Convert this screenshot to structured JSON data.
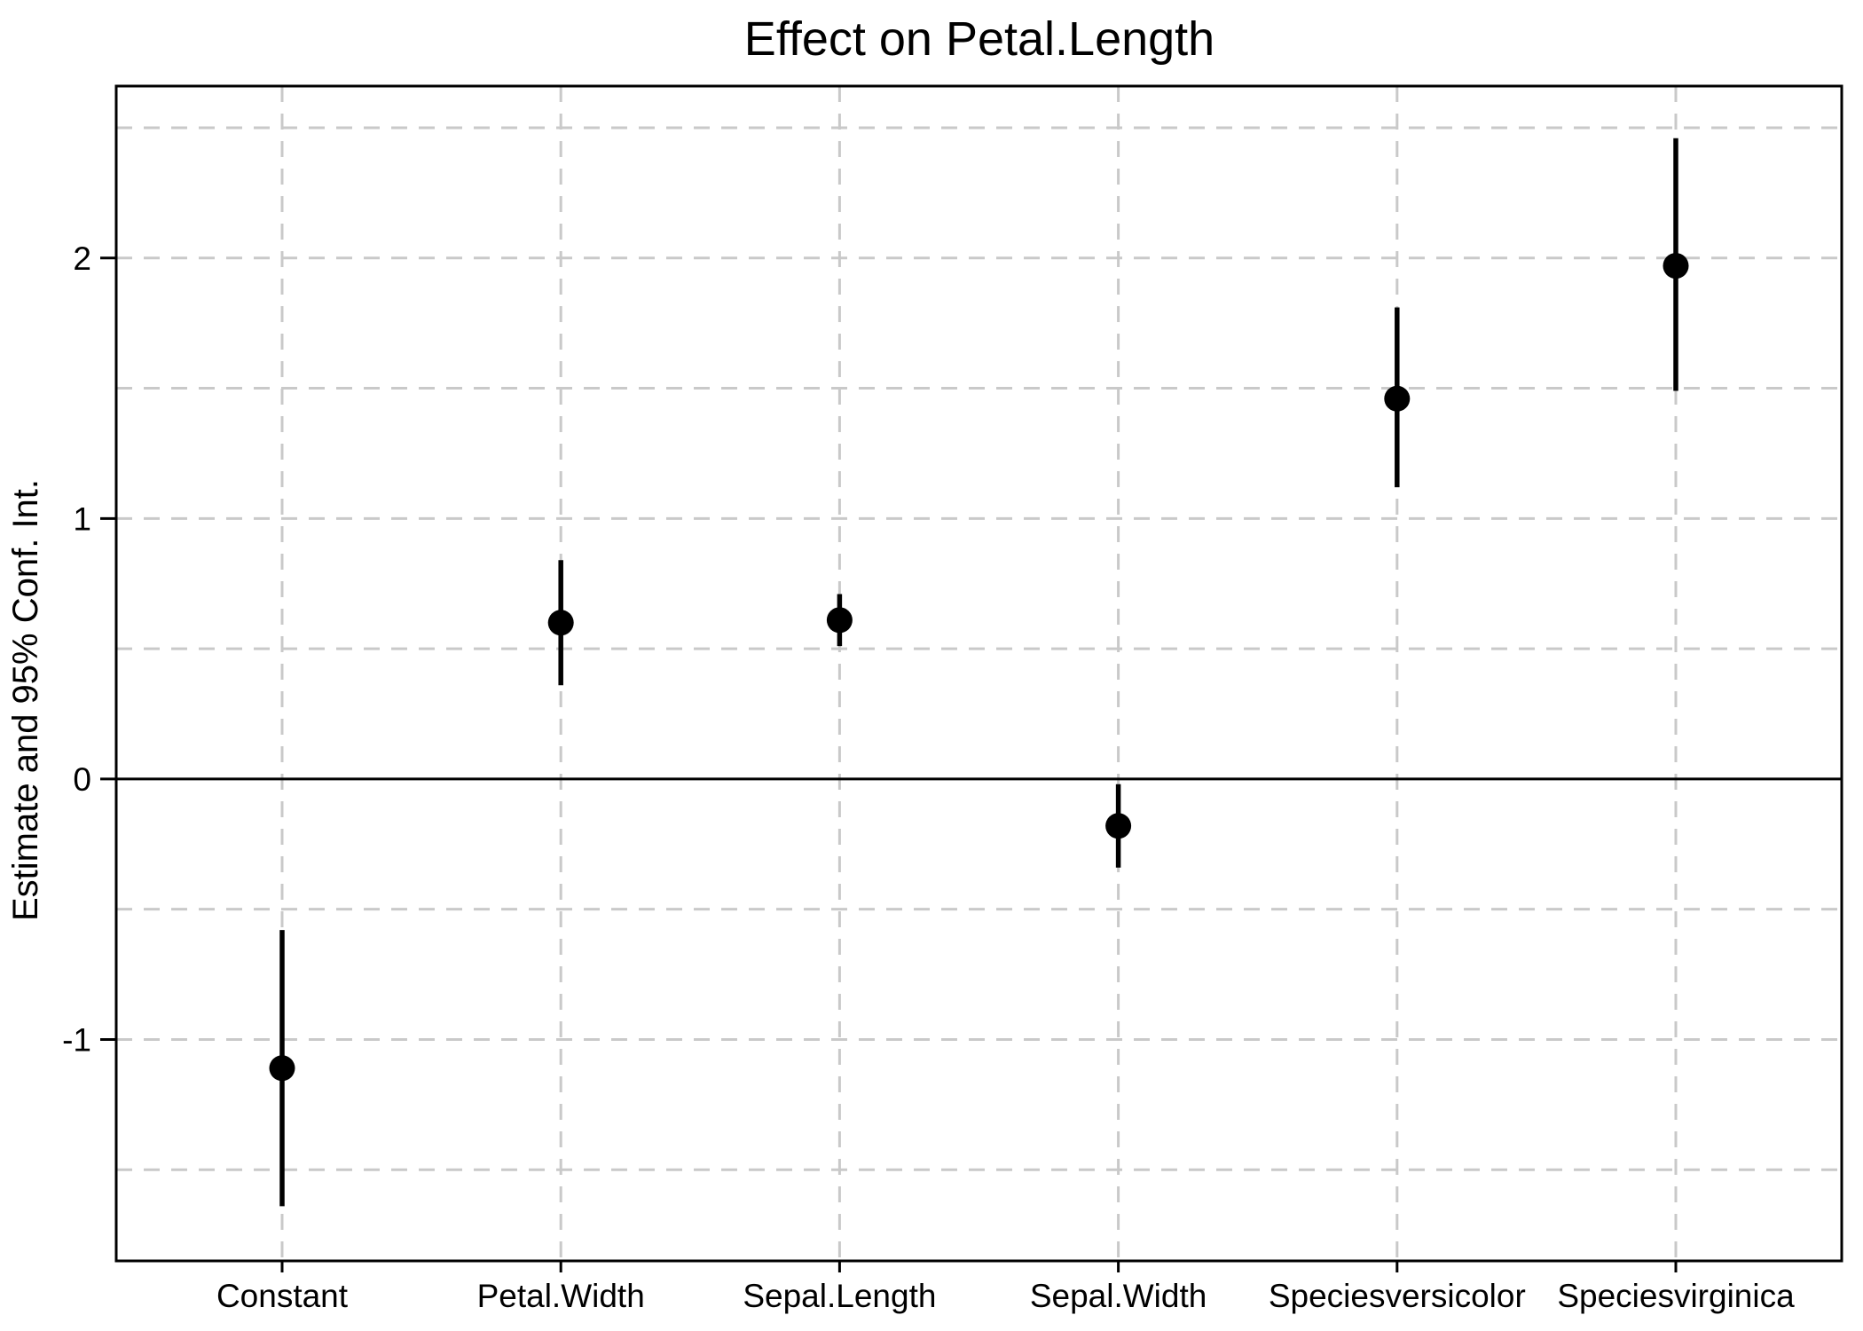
{
  "title": "Effect on Petal.Length",
  "chart_data": {
    "type": "scatter",
    "subtype": "coefficient-dot-and-whisker-plot",
    "title": "Effect on Petal.Length",
    "xlabel": "",
    "ylabel": "Estimate and 95% Conf. Int.",
    "categories": [
      "Constant",
      "Petal.Width",
      "Sepal.Length",
      "Sepal.Width",
      "Speciesversicolor",
      "Speciesvirginica"
    ],
    "series": [
      {
        "name": "estimate",
        "values": [
          -1.11,
          0.6,
          0.61,
          -0.18,
          1.46,
          1.97
        ]
      },
      {
        "name": "ci95_lower",
        "values": [
          -1.64,
          0.36,
          0.51,
          -0.34,
          1.12,
          1.49
        ]
      },
      {
        "name": "ci95_upper",
        "values": [
          -0.58,
          0.84,
          0.71,
          -0.02,
          1.81,
          2.46
        ]
      }
    ],
    "ylim": [
      -1.85,
      2.66
    ],
    "yticks": [
      2,
      1,
      0,
      -1
    ],
    "ytick_labels": [
      "2",
      "1",
      "0",
      "-1"
    ],
    "y_gridlines": [
      2.5,
      2,
      1.5,
      1,
      0.5,
      -0.5,
      -1,
      -1.5
    ],
    "zero_line": 0,
    "grid": "dashed gray horizontal every 0.5 and vertical at each category",
    "legend": false,
    "point_color": "#000000",
    "errorbar_color": "#000000",
    "gridline_color": "#c9c9c9",
    "axis_color": "#000000",
    "background_color": "#ffffff"
  }
}
